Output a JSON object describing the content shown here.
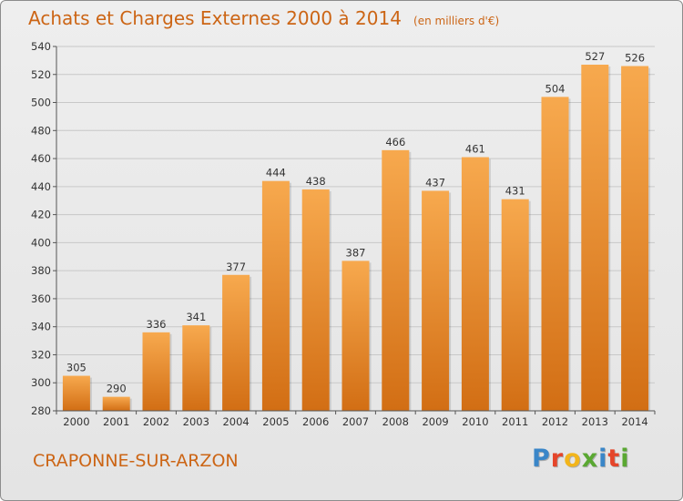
{
  "header": {
    "title": "Achats et Charges Externes 2000 à 2014",
    "unit": "(en milliers d'€)"
  },
  "footer": {
    "place": "CRAPONNE-SUR-ARZON",
    "brand_letters": [
      {
        "ch": "P",
        "color": "#3a86c8"
      },
      {
        "ch": "r",
        "color": "#e5452a"
      },
      {
        "ch": "o",
        "color": "#f2b51b"
      },
      {
        "ch": "x",
        "color": "#5aa832"
      },
      {
        "ch": "i",
        "color": "#3a86c8"
      },
      {
        "ch": "t",
        "color": "#e5452a"
      },
      {
        "ch": "i",
        "color": "#5aa832"
      }
    ]
  },
  "colors": {
    "bar_top": "#f7a94e",
    "bar_bottom": "#d26e14",
    "accent": "#cc6515",
    "grid": "#c8c8c8",
    "axis": "#555555",
    "text": "#333333"
  },
  "chart_data": {
    "type": "bar",
    "title": "Achats et Charges Externes 2000 à 2014",
    "subtitle": "(en milliers d'€)",
    "xlabel": "",
    "ylabel": "",
    "categories": [
      "2000",
      "2001",
      "2002",
      "2003",
      "2004",
      "2005",
      "2006",
      "2007",
      "2008",
      "2009",
      "2010",
      "2011",
      "2012",
      "2013",
      "2014"
    ],
    "values": [
      305,
      290,
      336,
      341,
      377,
      444,
      438,
      387,
      466,
      437,
      461,
      431,
      504,
      527,
      526
    ],
    "ylim": [
      280,
      540
    ],
    "yticks": [
      280,
      300,
      320,
      340,
      360,
      380,
      400,
      420,
      440,
      460,
      480,
      500,
      520,
      540
    ],
    "grid": true,
    "data_labels": true,
    "legend": "none"
  }
}
